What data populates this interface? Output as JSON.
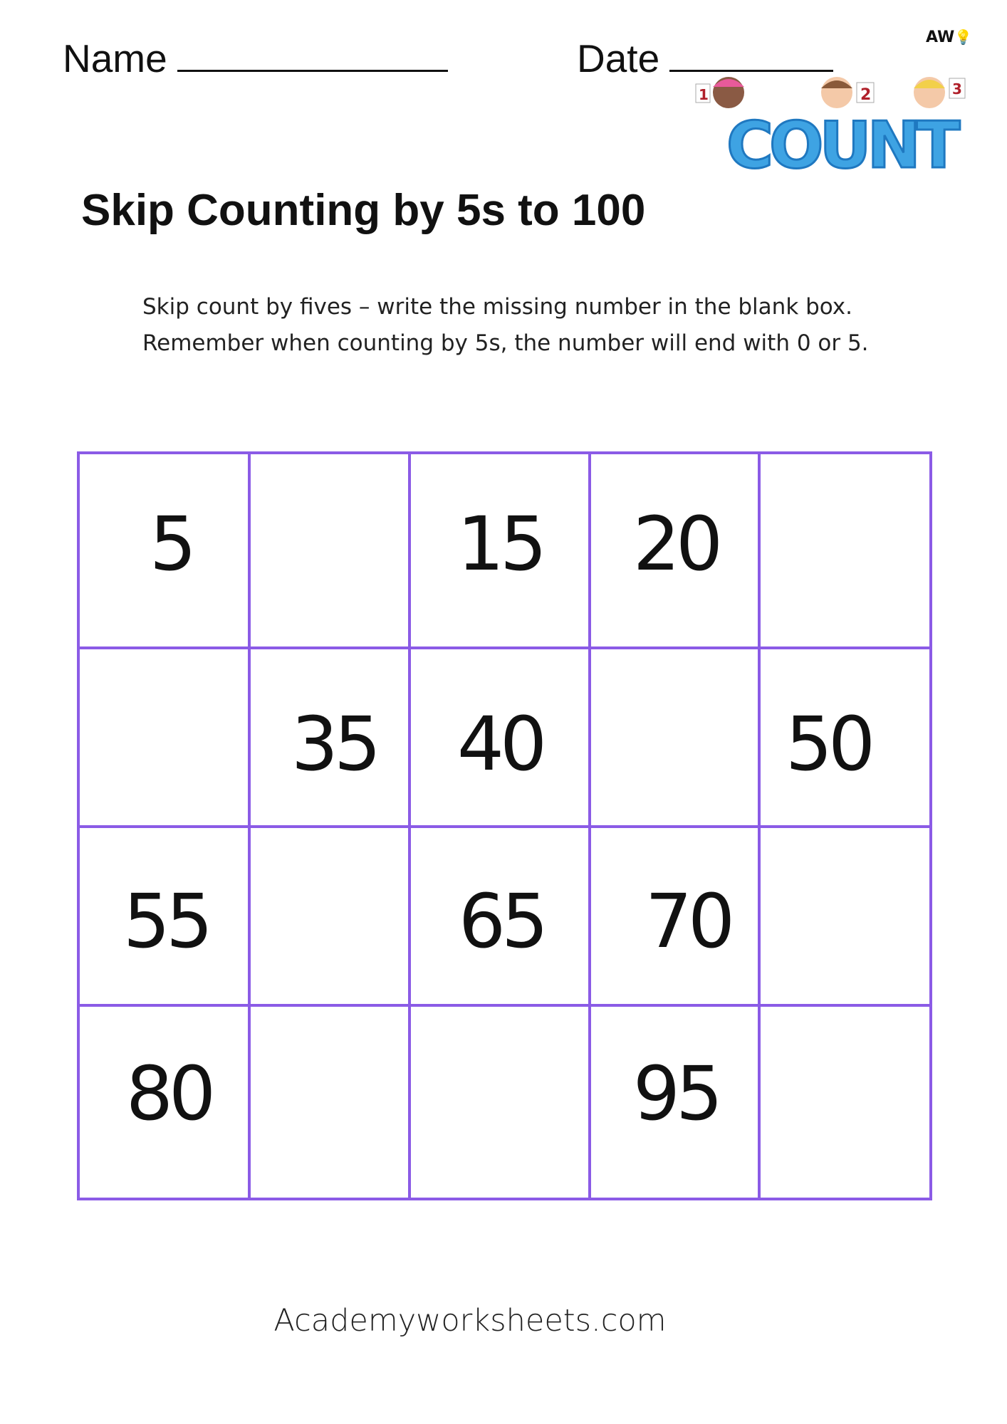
{
  "header": {
    "name_label": "Name",
    "date_label": "Date"
  },
  "logo": {
    "brand_text": "AW",
    "illustration_text": "COUNT",
    "cards": [
      "1",
      "2",
      "3"
    ]
  },
  "title": "Skip Counting by 5s to 100",
  "instructions": [
    "Skip count by fives – write the missing number in the blank box.",
    "Remember when counting by 5s, the number will end with 0 or 5."
  ],
  "grid": {
    "border_color": "#8b5be6",
    "rows": [
      [
        "5",
        "",
        "15",
        "20",
        ""
      ],
      [
        "",
        "35",
        "40",
        "",
        "50"
      ],
      [
        "55",
        "",
        "65",
        "70",
        ""
      ],
      [
        "80",
        "",
        "",
        "95",
        ""
      ]
    ]
  },
  "footer": "Academyworksheets.com"
}
